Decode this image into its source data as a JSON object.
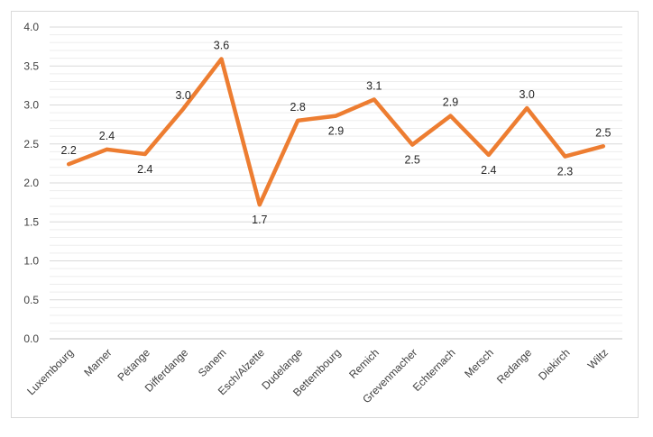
{
  "chart_data": {
    "type": "line",
    "title": "",
    "xlabel": "",
    "ylabel": "",
    "ylim": [
      0,
      4
    ],
    "y_major_ticks": [
      "0.0",
      "0.5",
      "1.0",
      "1.5",
      "2.0",
      "2.5",
      "3.0",
      "3.5",
      "4.0"
    ],
    "grid": true,
    "legend": "none",
    "line_color": "#ED7D31",
    "categories": [
      "Luxembourg",
      "Mamer",
      "Pétange",
      "Differdange",
      "Sanem",
      "Esch/Alzette",
      "Dudelange",
      "Bettembourg",
      "Remich",
      "Grevenmacher",
      "Echternach",
      "Mersch",
      "Redange",
      "Diekirch",
      "Wiltz"
    ],
    "values": [
      2.24,
      2.43,
      2.37,
      2.95,
      3.59,
      1.72,
      2.8,
      2.86,
      3.07,
      2.49,
      2.86,
      2.36,
      2.96,
      2.34,
      2.47
    ],
    "data_labels": [
      "2.2",
      "2.4",
      "2.4",
      "3.0",
      "3.6",
      "1.7",
      "2.8",
      "2.9",
      "3.1",
      "2.5",
      "2.9",
      "2.4",
      "3.0",
      "2.3",
      "2.5"
    ],
    "label_positions": [
      "above",
      "above",
      "below",
      "above",
      "above",
      "below",
      "above",
      "below",
      "above",
      "below",
      "above",
      "below",
      "above",
      "below",
      "above"
    ]
  }
}
